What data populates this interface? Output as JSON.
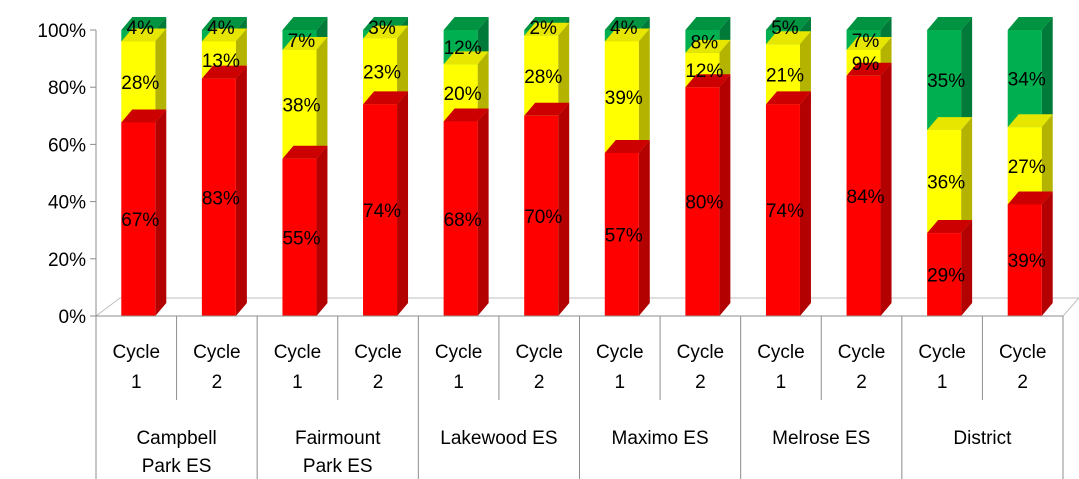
{
  "chart_data": {
    "type": "bar",
    "stacked": true,
    "percent_stacked": true,
    "three_d": true,
    "grid": false,
    "legend": "none",
    "title": "",
    "xlabel": "",
    "ylabel": "",
    "ylim": [
      0,
      100
    ],
    "y_ticks": [
      "0%",
      "20%",
      "40%",
      "60%",
      "80%",
      "100%"
    ],
    "groups": [
      {
        "label_lines": [
          "Campbell",
          "Park ES"
        ],
        "categories": [
          [
            "Cycle",
            "1"
          ],
          [
            "Cycle",
            "2"
          ]
        ]
      },
      {
        "label_lines": [
          "Fairmount",
          "Park ES"
        ],
        "categories": [
          [
            "Cycle",
            "1"
          ],
          [
            "Cycle",
            "2"
          ]
        ]
      },
      {
        "label_lines": [
          "Lakewood ES"
        ],
        "categories": [
          [
            "Cycle",
            "1"
          ],
          [
            "Cycle",
            "2"
          ]
        ]
      },
      {
        "label_lines": [
          "Maximo ES"
        ],
        "categories": [
          [
            "Cycle",
            "1"
          ],
          [
            "Cycle",
            "2"
          ]
        ]
      },
      {
        "label_lines": [
          "Melrose ES"
        ],
        "categories": [
          [
            "Cycle",
            "1"
          ],
          [
            "Cycle",
            "2"
          ]
        ]
      },
      {
        "label_lines": [
          "District"
        ],
        "categories": [
          [
            "Cycle",
            "1"
          ],
          [
            "Cycle",
            "2"
          ]
        ]
      }
    ],
    "series": [
      {
        "color": "#ff0000",
        "side_color": "#b30000",
        "top_color": "#cc0000",
        "values": [
          67,
          83,
          55,
          74,
          68,
          70,
          57,
          80,
          74,
          84,
          29,
          39
        ],
        "labels": [
          "67%",
          "83%",
          "55%",
          "74%",
          "68%",
          "70%",
          "57%",
          "80%",
          "74%",
          "84%",
          "29%",
          "39%"
        ]
      },
      {
        "color": "#ffff00",
        "side_color": "#b3b300",
        "top_color": "#e6e600",
        "values": [
          28,
          13,
          38,
          23,
          20,
          28,
          39,
          12,
          21,
          9,
          36,
          27
        ],
        "labels": [
          "28%",
          "13%",
          "38%",
          "23%",
          "20%",
          "28%",
          "39%",
          "12%",
          "21%",
          "9%",
          "36%",
          "27%"
        ]
      },
      {
        "color": "#00b050",
        "side_color": "#007a38",
        "top_color": "#009442",
        "values": [
          4,
          4,
          7,
          3,
          12,
          2,
          4,
          8,
          5,
          7,
          35,
          34
        ],
        "labels": [
          "4%",
          "4%",
          "7%",
          "3%",
          "12%",
          "2%",
          "4%",
          "8%",
          "5%",
          "7%",
          "35%",
          "34%"
        ]
      }
    ]
  }
}
